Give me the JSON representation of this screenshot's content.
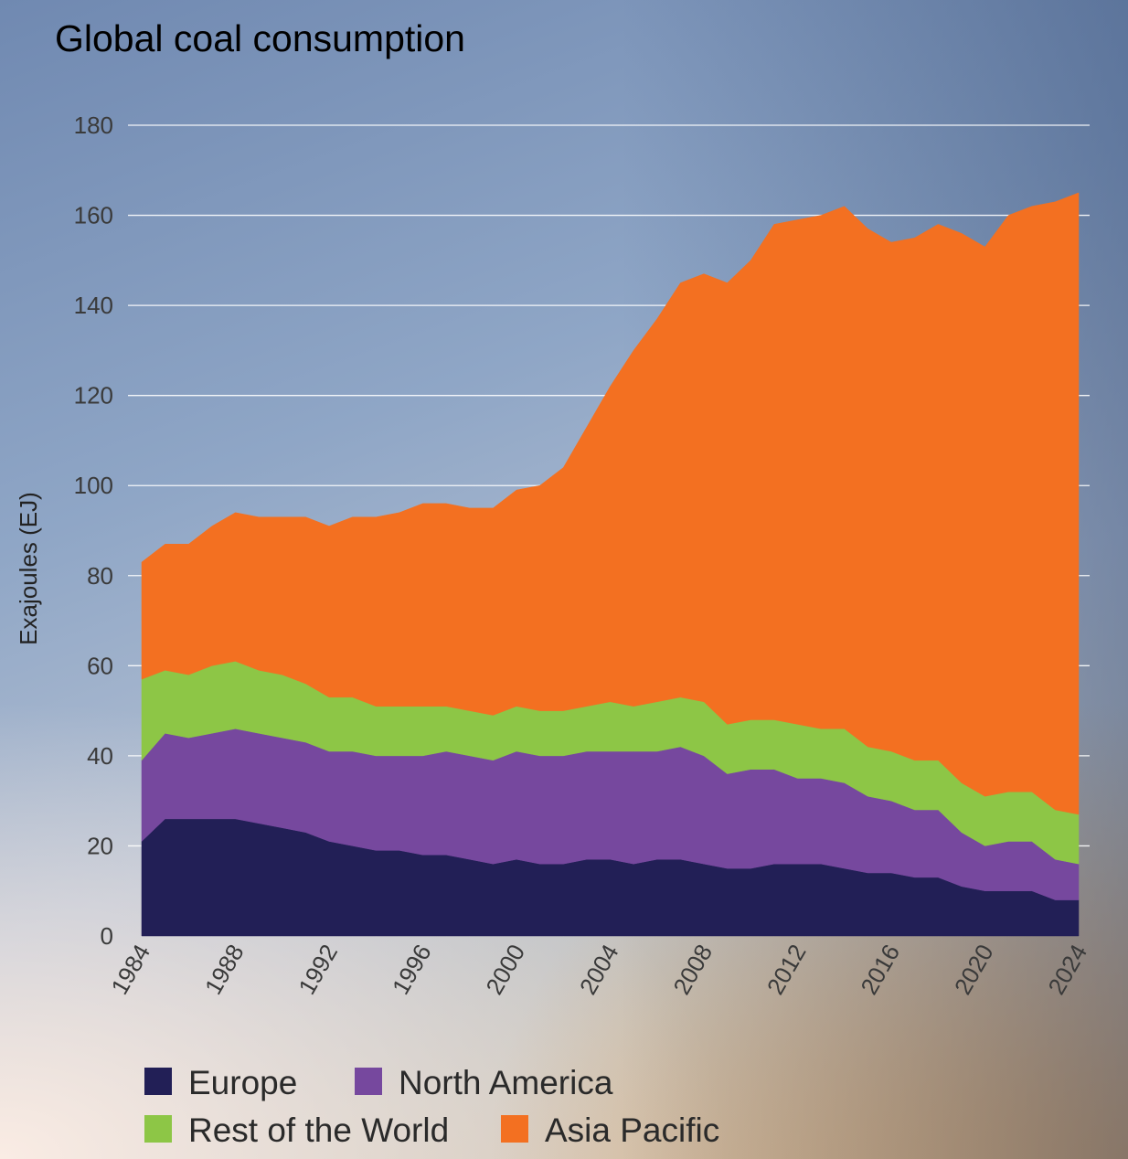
{
  "chart_data": {
    "type": "area",
    "stacked": true,
    "title": "Global coal consumption",
    "xlabel": "",
    "ylabel": "Exajoules (EJ)",
    "ylim": [
      0,
      180
    ],
    "yticks": [
      0,
      20,
      40,
      60,
      80,
      100,
      120,
      140,
      160,
      180
    ],
    "xlim": [
      1984,
      2024
    ],
    "xticks": [
      1984,
      1988,
      1992,
      1996,
      2000,
      2004,
      2008,
      2012,
      2016,
      2020,
      2024
    ],
    "grid": true,
    "legend_position": "bottom",
    "x": [
      1984,
      1985,
      1986,
      1987,
      1988,
      1989,
      1990,
      1991,
      1992,
      1993,
      1994,
      1995,
      1996,
      1997,
      1998,
      1999,
      2000,
      2001,
      2002,
      2003,
      2004,
      2005,
      2006,
      2007,
      2008,
      2009,
      2010,
      2011,
      2012,
      2013,
      2014,
      2015,
      2016,
      2017,
      2018,
      2019,
      2020,
      2021,
      2022,
      2023,
      2024
    ],
    "series": [
      {
        "name": "Europe",
        "color": "#221f56",
        "values": [
          21,
          26,
          26,
          26,
          26,
          25,
          24,
          23,
          21,
          20,
          19,
          19,
          18,
          18,
          17,
          16,
          17,
          16,
          16,
          17,
          17,
          16,
          17,
          17,
          16,
          15,
          15,
          16,
          16,
          16,
          15,
          14,
          14,
          13,
          13,
          11,
          10,
          10,
          10,
          8,
          8
        ]
      },
      {
        "name": "North America",
        "color": "#76489e",
        "values": [
          18,
          19,
          18,
          19,
          20,
          20,
          20,
          20,
          20,
          21,
          21,
          21,
          22,
          23,
          23,
          23,
          24,
          24,
          24,
          24,
          24,
          25,
          24,
          25,
          24,
          21,
          22,
          21,
          19,
          19,
          19,
          17,
          16,
          15,
          15,
          12,
          10,
          11,
          11,
          9,
          8
        ]
      },
      {
        "name": "Rest of the World",
        "color": "#8dc646",
        "values": [
          18,
          14,
          14,
          15,
          15,
          14,
          14,
          13,
          12,
          12,
          11,
          11,
          11,
          10,
          10,
          10,
          10,
          10,
          10,
          10,
          11,
          10,
          11,
          11,
          12,
          11,
          11,
          11,
          12,
          11,
          12,
          11,
          11,
          11,
          11,
          11,
          11,
          11,
          11,
          11,
          11
        ]
      },
      {
        "name": "Asia Pacific",
        "color": "#f37021",
        "values": [
          26,
          28,
          29,
          31,
          33,
          34,
          35,
          37,
          38,
          40,
          42,
          43,
          45,
          45,
          45,
          46,
          48,
          50,
          54,
          62,
          70,
          79,
          85,
          92,
          95,
          98,
          102,
          110,
          112,
          114,
          116,
          115,
          113,
          116,
          119,
          122,
          122,
          128,
          130,
          135,
          138
        ]
      }
    ],
    "legend_order": [
      "Europe",
      "North America",
      "Rest of the World",
      "Asia Pacific"
    ]
  }
}
